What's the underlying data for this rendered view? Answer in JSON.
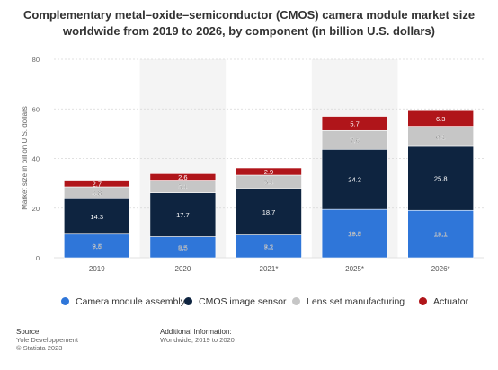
{
  "title_line1": "Complementary metal–oxide–semiconductor (CMOS) camera module market size",
  "title_line2": "worldwide from 2019 to 2026, by component (in billion U.S. dollars)",
  "source": {
    "heading": "Source",
    "line1": "Yole Developpement",
    "line2": "© Statista 2023"
  },
  "additional_info": {
    "heading": "Additional Information:",
    "line1": "Worldwide; 2019 to 2020"
  },
  "chart_data": {
    "type": "bar",
    "stacked": true,
    "categories": [
      "2019",
      "2020",
      "2021*",
      "2025*",
      "2026*"
    ],
    "series": [
      {
        "name": "Camera module assembly",
        "color": "#2f76d9",
        "values": [
          9.5,
          8.5,
          9.2,
          19.5,
          19.1
        ],
        "labels": [
          "9.5",
          "8.5",
          "9.2",
          "19.5",
          "19.1"
        ]
      },
      {
        "name": "CMOS image sensor",
        "color": "#0e2440",
        "values": [
          14.3,
          17.7,
          18.7,
          24.2,
          25.8
        ],
        "labels": [
          "14.3",
          "17.7",
          "18.7",
          "24.2",
          "25.8"
        ]
      },
      {
        "name": "Lens set manufacturing",
        "color": "#c6c6c6",
        "values": [
          4.8,
          5.1,
          5.4,
          7.6,
          8.1
        ],
        "labels": [
          "4.8",
          "5.1",
          "5.4",
          "7.6",
          "8.1"
        ]
      },
      {
        "name": "Actuator",
        "color": "#b0151a",
        "values": [
          2.7,
          2.6,
          2.9,
          5.7,
          6.3
        ],
        "labels": [
          "2.7",
          "2.6",
          "2.9",
          "5.7",
          "6.3"
        ]
      }
    ],
    "ylabel": "Market size in billion U.S. dollars",
    "ylim": [
      0,
      80
    ],
    "yticks": [
      0,
      20,
      40,
      60,
      80
    ],
    "grid": true,
    "legend_position": "bottom"
  }
}
